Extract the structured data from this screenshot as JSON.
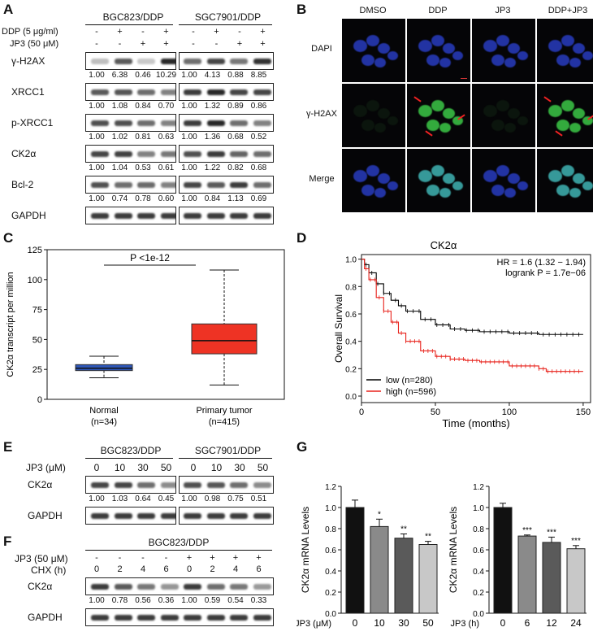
{
  "panels": {
    "A": "A",
    "B": "B",
    "C": "C",
    "D": "D",
    "E": "E",
    "F": "F",
    "G": "G"
  },
  "A": {
    "groups": [
      "BGC823/DDP",
      "SGC7901/DDP"
    ],
    "treat_labels": [
      "DDP (5 μg/ml)",
      "JP3 (50 μM)"
    ],
    "ddp_signs": [
      "-",
      "+",
      "-",
      "+",
      "-",
      "+",
      "-",
      "+"
    ],
    "jp3_signs": [
      "-",
      "-",
      "+",
      "+",
      "-",
      "-",
      "+",
      "+"
    ],
    "rows": [
      {
        "label": "γ-H2AX",
        "quant": [
          "1.00",
          "6.38",
          "0.46",
          "10.29",
          "1.00",
          "4.13",
          "0.88",
          "8.85"
        ],
        "intensity": [
          0.2,
          0.7,
          0.15,
          0.95,
          0.6,
          0.8,
          0.55,
          0.9
        ]
      },
      {
        "label": "XRCC1",
        "quant": [
          "1.00",
          "1.08",
          "0.84",
          "0.70",
          "1.00",
          "1.32",
          "0.89",
          "0.86"
        ],
        "intensity": [
          0.7,
          0.72,
          0.6,
          0.5,
          0.85,
          0.95,
          0.8,
          0.8
        ]
      },
      {
        "label": "p-XRCC1",
        "quant": [
          "1.00",
          "1.02",
          "0.81",
          "0.63",
          "1.00",
          "1.36",
          "0.68",
          "0.52"
        ],
        "intensity": [
          0.75,
          0.75,
          0.6,
          0.5,
          0.85,
          0.95,
          0.6,
          0.5
        ]
      },
      {
        "label": "CK2α",
        "quant": [
          "1.00",
          "1.04",
          "0.53",
          "0.61",
          "1.00",
          "1.22",
          "0.82",
          "0.68"
        ],
        "intensity": [
          0.8,
          0.82,
          0.5,
          0.55,
          0.75,
          0.85,
          0.65,
          0.6
        ]
      },
      {
        "label": "Bcl-2",
        "quant": [
          "1.00",
          "0.74",
          "0.78",
          "0.60",
          "1.00",
          "0.84",
          "1.13",
          "0.69"
        ],
        "intensity": [
          0.75,
          0.6,
          0.62,
          0.5,
          0.8,
          0.7,
          0.85,
          0.6
        ]
      },
      {
        "label": "GAPDH",
        "quant": [],
        "intensity": [
          0.85,
          0.85,
          0.85,
          0.85,
          0.85,
          0.85,
          0.85,
          0.85
        ]
      }
    ]
  },
  "B": {
    "columns": [
      "DMSO",
      "DDP",
      "JP3",
      "DDP+JP3"
    ],
    "rows": [
      "DAPI",
      "γ-H2AX",
      "Merge"
    ]
  },
  "C": {
    "ylabel": "CK2α transcript per million",
    "pvalue": "P <1e-12",
    "yticks": [
      "0",
      "25",
      "50",
      "75",
      "100",
      "125"
    ],
    "groups": [
      {
        "name": "Normal",
        "n": "(n=34)"
      },
      {
        "name": "Primary tumor",
        "n": "(n=415)"
      }
    ],
    "colors": {
      "normal": "#2f57b7",
      "tumor": "#ee3324"
    }
  },
  "chart_data": [
    {
      "type": "box",
      "title": "",
      "ylabel": "CK2α transcript per million",
      "ylim": [
        0,
        125
      ],
      "categories": [
        "Normal",
        "Primary tumor"
      ],
      "boxes": [
        {
          "name": "Normal",
          "min": 18,
          "q1": 24,
          "median": 26,
          "q3": 29,
          "max": 36
        },
        {
          "name": "Primary tumor",
          "min": 12,
          "q1": 38,
          "median": 49,
          "q3": 63,
          "max": 108
        }
      ]
    },
    {
      "type": "line",
      "title": "CK2α",
      "xlabel": "Time (months)",
      "ylabel": "Overall Survival",
      "xlim": [
        0,
        155
      ],
      "ylim": [
        0,
        1.0
      ],
      "series": [
        {
          "name": "low (n=280)",
          "color": "#000000",
          "x": [
            0,
            2,
            5,
            10,
            15,
            20,
            25,
            30,
            40,
            50,
            60,
            70,
            80,
            100,
            120,
            150
          ],
          "y": [
            1.0,
            0.96,
            0.9,
            0.82,
            0.75,
            0.7,
            0.66,
            0.62,
            0.56,
            0.52,
            0.49,
            0.48,
            0.47,
            0.46,
            0.45,
            0.45
          ]
        },
        {
          "name": "high (n=596)",
          "color": "#e8221b",
          "x": [
            0,
            2,
            5,
            10,
            15,
            20,
            25,
            30,
            40,
            50,
            60,
            70,
            80,
            100,
            120,
            125,
            150
          ],
          "y": [
            1.0,
            0.93,
            0.85,
            0.72,
            0.62,
            0.54,
            0.46,
            0.4,
            0.33,
            0.29,
            0.27,
            0.26,
            0.25,
            0.22,
            0.2,
            0.18,
            0.18
          ]
        }
      ]
    },
    {
      "type": "bar",
      "xlabel": "JP3 (μM)",
      "ylabel": "CK2α mRNA Levels",
      "ylim": [
        0,
        1.2
      ],
      "categories": [
        "0",
        "10",
        "30",
        "50"
      ],
      "values": [
        1.0,
        0.82,
        0.71,
        0.65
      ],
      "errors": [
        0.07,
        0.07,
        0.04,
        0.03
      ],
      "sig": [
        "",
        "*",
        "**",
        "**"
      ]
    },
    {
      "type": "bar",
      "xlabel": "JP3 (h)",
      "ylabel": "CK2α mRNA Levels",
      "ylim": [
        0,
        1.2
      ],
      "categories": [
        "0",
        "6",
        "12",
        "24"
      ],
      "values": [
        1.0,
        0.73,
        0.67,
        0.61
      ],
      "errors": [
        0.04,
        0.01,
        0.05,
        0.03
      ],
      "sig": [
        "",
        "***",
        "***",
        "***"
      ]
    }
  ],
  "D": {
    "title": "CK2α",
    "hr": "HR = 1.6 (1.32 − 1.94)",
    "logrank": "logrank P = 1.7e−06",
    "ylabel": "Overall Survival",
    "xlabel": "Time (months)",
    "yticks": [
      "0.0",
      "0.2",
      "0.4",
      "0.6",
      "0.8",
      "1.0"
    ],
    "xticks": [
      "0",
      "50",
      "100",
      "150"
    ],
    "legend": [
      "low (n=280)",
      "high (n=596)"
    ]
  },
  "E": {
    "groups": [
      "BGC823/DDP",
      "SGC7901/DDP"
    ],
    "jp3_label": "JP3 (μM)",
    "doses": [
      "0",
      "10",
      "30",
      "50",
      "0",
      "10",
      "30",
      "50"
    ],
    "rows": [
      {
        "label": "CK2α",
        "quant": [
          "1.00",
          "1.03",
          "0.64",
          "0.45",
          "1.00",
          "0.98",
          "0.75",
          "0.51"
        ],
        "intensity": [
          0.8,
          0.8,
          0.6,
          0.45,
          0.75,
          0.72,
          0.6,
          0.45
        ]
      },
      {
        "label": "GAPDH",
        "quant": [],
        "intensity": [
          0.85,
          0.85,
          0.85,
          0.85,
          0.85,
          0.85,
          0.85,
          0.85
        ]
      }
    ]
  },
  "F": {
    "group": "BGC823/DDP",
    "jp3_label": "JP3 (50 μM)",
    "chx_label": "CHX (h)",
    "jp3_signs": [
      "-",
      "-",
      "-",
      "-",
      "+",
      "+",
      "+",
      "+"
    ],
    "chx": [
      "0",
      "2",
      "4",
      "6",
      "0",
      "2",
      "4",
      "6"
    ],
    "rows": [
      {
        "label": "CK2α",
        "quant": [
          "1.00",
          "0.78",
          "0.56",
          "0.36",
          "1.00",
          "0.59",
          "0.54",
          "0.33"
        ],
        "intensity": [
          0.85,
          0.7,
          0.55,
          0.4,
          0.85,
          0.6,
          0.55,
          0.38
        ]
      },
      {
        "label": "GAPDH",
        "quant": [],
        "intensity": [
          0.85,
          0.85,
          0.85,
          0.85,
          0.85,
          0.85,
          0.85,
          0.85
        ]
      }
    ]
  },
  "G": {
    "ylabel": "CK2α mRNA Levels",
    "left_xlabel": "JP3 (μM)",
    "right_xlabel": "JP3 (h)",
    "yticks": [
      "0.0",
      "0.2",
      "0.4",
      "0.6",
      "0.8",
      "1.0",
      "1.2"
    ]
  }
}
